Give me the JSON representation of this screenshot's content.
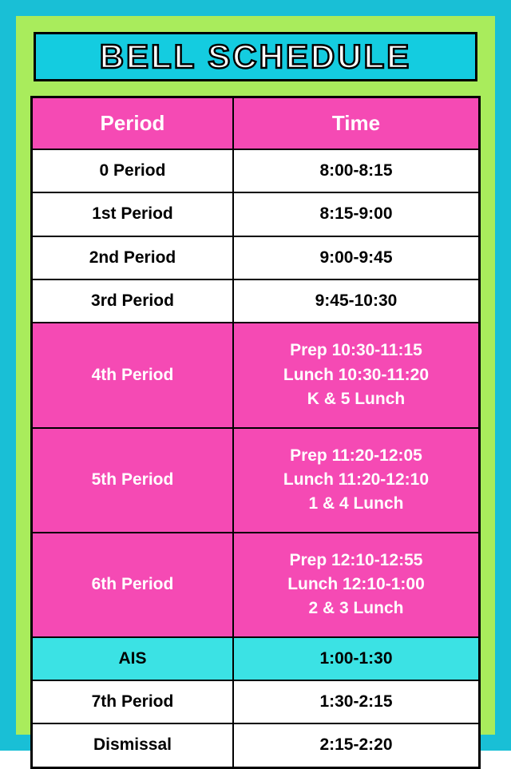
{
  "title": "BELL SCHEDULE",
  "colors": {
    "outer_bg": "#19bfd6",
    "inner_bg": "#a9ec5c",
    "banner_bg": "#14cce0",
    "border": "#000000",
    "header_bg": "#f54ab4",
    "header_text": "#ffffff",
    "row_white_bg": "#ffffff",
    "row_white_text": "#000000",
    "row_pink_bg": "#f54ab4",
    "row_pink_text": "#ffffff",
    "row_cyan_bg": "#3be2e4",
    "row_cyan_text": "#000000"
  },
  "headers": {
    "period": "Period",
    "time": "Time"
  },
  "rows": [
    {
      "period": "0 Period",
      "time": "8:00-8:15",
      "style": "white",
      "tall": false
    },
    {
      "period": "1st Period",
      "time": "8:15-9:00",
      "style": "white",
      "tall": false
    },
    {
      "period": "2nd Period",
      "time": "9:00-9:45",
      "style": "white",
      "tall": false
    },
    {
      "period": "3rd Period",
      "time": "9:45-10:30",
      "style": "white",
      "tall": false
    },
    {
      "period": "4th Period",
      "time_lines": [
        "Prep 10:30-11:15",
        "Lunch 10:30-11:20",
        "K & 5 Lunch"
      ],
      "style": "pink",
      "tall": true
    },
    {
      "period": "5th Period",
      "time_lines": [
        "Prep 11:20-12:05",
        "Lunch 11:20-12:10",
        "1 & 4 Lunch"
      ],
      "style": "pink",
      "tall": true
    },
    {
      "period": "6th Period",
      "time_lines": [
        "Prep 12:10-12:55",
        "Lunch 12:10-1:00",
        "2 & 3 Lunch"
      ],
      "style": "pink",
      "tall": true
    },
    {
      "period": "AIS",
      "time": "1:00-1:30",
      "style": "cyan",
      "tall": false
    },
    {
      "period": "7th Period",
      "time": "1:30-2:15",
      "style": "white",
      "tall": false
    },
    {
      "period": "Dismissal",
      "time": "2:15-2:20",
      "style": "white",
      "tall": false
    }
  ]
}
